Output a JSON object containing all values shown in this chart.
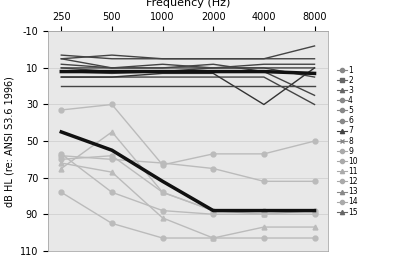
{
  "title": "Frequency (Hz)",
  "ylabel": "dB HL (re: ANSI S3.6 1996)",
  "x_ticks": [
    250,
    500,
    1000,
    2000,
    4000,
    8000
  ],
  "x_labels": [
    "250",
    "500",
    "1000",
    "2000",
    "4000",
    "8000"
  ],
  "ylim": [
    -10,
    110
  ],
  "yticks": [
    -10,
    10,
    30,
    50,
    70,
    90,
    110
  ],
  "upper_series": [
    {
      "color": "#444444",
      "lw": 1.0,
      "values": [
        5,
        3,
        5,
        5,
        5,
        -2
      ]
    },
    {
      "color": "#444444",
      "lw": 1.0,
      "values": [
        3,
        5,
        5,
        5,
        5,
        5
      ]
    },
    {
      "color": "#444444",
      "lw": 1.0,
      "values": [
        8,
        10,
        10,
        10,
        10,
        15
      ]
    },
    {
      "color": "#444444",
      "lw": 1.0,
      "values": [
        10,
        12,
        12,
        10,
        10,
        10
      ]
    },
    {
      "color": "#444444",
      "lw": 1.0,
      "values": [
        10,
        10,
        8,
        10,
        8,
        8
      ]
    },
    {
      "color": "#444444",
      "lw": 1.0,
      "values": [
        12,
        13,
        12,
        12,
        12,
        13
      ]
    },
    {
      "color": "#444444",
      "lw": 1.0,
      "values": [
        5,
        10,
        10,
        8,
        12,
        25
      ]
    },
    {
      "color": "#444444",
      "lw": 1.0,
      "values": [
        15,
        15,
        15,
        15,
        15,
        30
      ]
    },
    {
      "color": "#333333",
      "lw": 1.0,
      "values": [
        15,
        15,
        13,
        13,
        30,
        10
      ]
    },
    {
      "color": "#444444",
      "lw": 1.0,
      "values": [
        20,
        20,
        20,
        20,
        20,
        20
      ]
    }
  ],
  "bold_upper": {
    "color": "#111111",
    "lw": 2.5,
    "values": [
      12,
      12,
      12,
      12,
      12,
      13
    ]
  },
  "lower_series": [
    {
      "marker": "o",
      "color": "#bbbbbb",
      "lw": 1.0,
      "values": [
        33,
        30,
        63,
        57,
        57,
        50
      ]
    },
    {
      "marker": "o",
      "color": "#bbbbbb",
      "lw": 1.0,
      "values": [
        58,
        60,
        62,
        65,
        72,
        72
      ]
    },
    {
      "marker": "o",
      "color": "#bbbbbb",
      "lw": 1.0,
      "values": [
        60,
        58,
        78,
        88,
        88,
        88
      ]
    },
    {
      "marker": "o",
      "color": "#bbbbbb",
      "lw": 1.0,
      "values": [
        57,
        78,
        88,
        90,
        90,
        90
      ]
    },
    {
      "marker": "^",
      "color": "#bbbbbb",
      "lw": 1.0,
      "values": [
        65,
        45,
        78,
        88,
        90,
        88
      ]
    },
    {
      "marker": "o",
      "color": "#bbbbbb",
      "lw": 1.0,
      "values": [
        78,
        95,
        103,
        103,
        103,
        103
      ]
    },
    {
      "marker": "^",
      "color": "#bbbbbb",
      "lw": 1.0,
      "values": [
        62,
        67,
        92,
        103,
        97,
        97
      ]
    }
  ],
  "bold_lower": {
    "color": "#111111",
    "lw": 2.5,
    "values": [
      45,
      55,
      72,
      88,
      88,
      88
    ]
  },
  "legend_entries": [
    {
      "id": "1",
      "marker": "o",
      "color": "#888888"
    },
    {
      "id": "2",
      "marker": "s",
      "color": "#666666"
    },
    {
      "id": "3",
      "marker": "^",
      "color": "#666666"
    },
    {
      "id": "4",
      "marker": "o",
      "color": "#888888"
    },
    {
      "id": "5",
      "marker": "o",
      "color": "#888888"
    },
    {
      "id": "6",
      "marker": "o",
      "color": "#888888"
    },
    {
      "id": "7",
      "marker": "^",
      "color": "#444444"
    },
    {
      "id": "8",
      "marker": "x",
      "color": "#888888"
    },
    {
      "id": "9",
      "marker": "o",
      "color": "#aaaaaa"
    },
    {
      "id": "10",
      "marker": "o",
      "color": "#aaaaaa"
    },
    {
      "id": "11",
      "marker": "^",
      "color": "#aaaaaa"
    },
    {
      "id": "12",
      "marker": "o",
      "color": "#aaaaaa"
    },
    {
      "id": "13",
      "marker": "^",
      "color": "#888888"
    },
    {
      "id": "14",
      "marker": "o",
      "color": "#aaaaaa"
    },
    {
      "id": "15",
      "marker": "^",
      "color": "#666666"
    }
  ]
}
